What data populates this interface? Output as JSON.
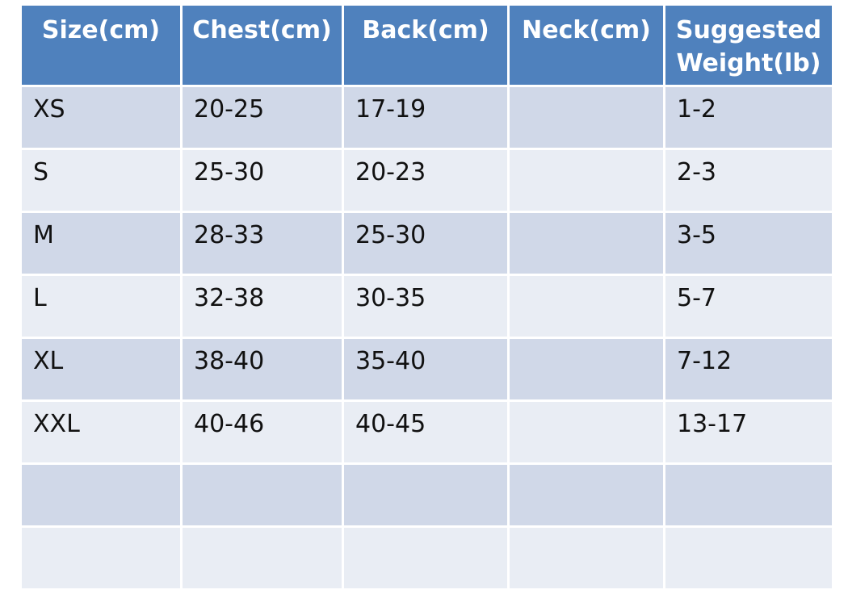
{
  "table": {
    "headers": [
      "Size(cm)",
      "Chest(cm)",
      "Back(cm)",
      "Neck(cm)",
      "Suggested Weight(lb)"
    ],
    "rows": [
      [
        "XS",
        "20-25",
        "17-19",
        "",
        "1-2"
      ],
      [
        "S",
        "25-30",
        "20-23",
        "",
        "2-3"
      ],
      [
        "M",
        "28-33",
        "25-30",
        "",
        "3-5"
      ],
      [
        "L",
        "32-38",
        "30-35",
        "",
        "5-7"
      ],
      [
        "XL",
        "38-40",
        "35-40",
        "",
        "7-12"
      ],
      [
        "XXL",
        "40-46",
        "40-45",
        "",
        "13-17"
      ],
      [
        "",
        "",
        "",
        "",
        ""
      ],
      [
        "",
        "",
        "",
        "",
        ""
      ]
    ]
  },
  "colors": {
    "header_bg": "#4f81bd",
    "row_band_dark": "#d0d8e8",
    "row_band_light": "#e9edf4"
  }
}
